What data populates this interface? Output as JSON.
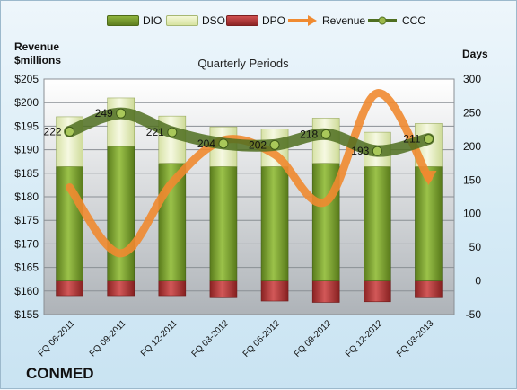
{
  "company": "CONMED",
  "colors": {
    "dio": "#6b8e23",
    "dso": "#e8f0c0",
    "dpo": "#b23a3a",
    "revenue": "#f08a30",
    "ccc": "#5a7a2a"
  },
  "chart_data": {
    "type": "bar",
    "title": "Quarterly Periods",
    "ylabel_left": "Revenue\n$millions",
    "ylabel_right": "Days",
    "categories": [
      "FQ 06-2011",
      "FQ 09-2011",
      "FQ 12-2011",
      "FQ 03-2012",
      "FQ 06-2012",
      "FQ 09-2012",
      "FQ 12-2012",
      "FQ 03-2013"
    ],
    "left_axis": {
      "min": 155,
      "max": 205,
      "step": 5,
      "ticks": [
        "$155",
        "$160",
        "$165",
        "$170",
        "$175",
        "$180",
        "$185",
        "$190",
        "$195",
        "$200",
        "$205"
      ]
    },
    "right_axis": {
      "min": -50,
      "max": 300,
      "step": 50,
      "ticks": [
        "-50",
        "0",
        "50",
        "100",
        "150",
        "200",
        "250",
        "300"
      ]
    },
    "series": [
      {
        "name": "DIO",
        "type": "bar",
        "axis": "right",
        "values": [
          170,
          200,
          175,
          170,
          170,
          175,
          170,
          170
        ]
      },
      {
        "name": "DSO",
        "type": "bar",
        "axis": "right",
        "values": [
          74,
          72,
          70,
          59,
          56,
          67,
          51,
          64
        ]
      },
      {
        "name": "DPO",
        "type": "bar",
        "axis": "right",
        "values": [
          -22,
          -22,
          -22,
          -25,
          -30,
          -32,
          -31,
          -25
        ]
      },
      {
        "name": "Revenue",
        "type": "line",
        "axis": "left",
        "values": [
          182,
          168,
          183,
          192,
          189,
          179,
          202,
          184
        ]
      },
      {
        "name": "CCC",
        "type": "line",
        "axis": "right",
        "values": [
          222,
          249,
          221,
          204,
          202,
          218,
          193,
          211
        ],
        "labels": [
          "222",
          "249",
          "221",
          "204",
          "202",
          "218",
          "193",
          "211"
        ]
      }
    ],
    "legend": {
      "placement": "top",
      "entries": [
        "DIO",
        "DSO",
        "DPO",
        "Revenue",
        "CCC"
      ]
    }
  }
}
